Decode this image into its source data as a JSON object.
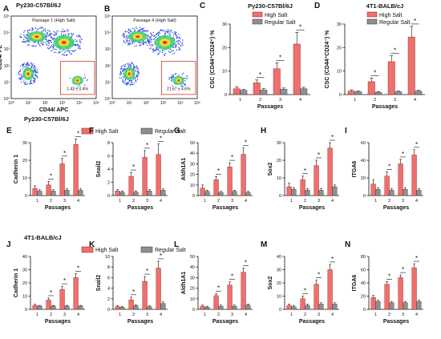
{
  "colors": {
    "high_salt": "#ef6f6c",
    "regular_salt": "#8f8f8f",
    "bar_edge": "#8a1c1c",
    "gray_edge": "#333333"
  },
  "sections": {
    "top_py230": "Py230-C57Bl/6J",
    "top_4t1": "4T1-BALB/cJ",
    "row2_label": "Py230-C57Bl/6J",
    "row3_label": "4T1-BALB/cJ"
  },
  "legend": {
    "high": "High Salt",
    "regular": "Regular Salt"
  },
  "flow": [
    {
      "letter": "A",
      "label": "Passage 1 (High Salt)",
      "ylabel": "CD24/ PE",
      "xlabel": "CD44/ APC",
      "gate_value": "1.43 ± 0.4%",
      "ticks": [
        "10⁰",
        "10¹",
        "10²",
        "10³",
        "10⁴",
        "10⁵"
      ]
    },
    {
      "letter": "B",
      "label": "Passage 4 (High Salt)",
      "ylabel": "",
      "xlabel": "",
      "gate_value": "21.67 ± 4.6%",
      "ticks": [
        "10⁰",
        "10¹",
        "10²",
        "10³",
        "10⁴",
        "10⁵"
      ]
    }
  ],
  "chart_data": [
    {
      "letter": "C",
      "type": "bar",
      "title": "Py230-C57Bl/6J",
      "ylabel": "CSC (CD44⁺CD24⁺) %",
      "xlabel": "Passages",
      "categories": [
        "1",
        "2",
        "3",
        "4"
      ],
      "ylim": [
        0,
        30
      ],
      "yticks": [
        0,
        10,
        20,
        30
      ],
      "series": [
        {
          "name": "High Salt",
          "values": [
            2.5,
            5.0,
            11.0,
            21.5
          ],
          "errors": [
            0.8,
            1.2,
            2.5,
            5.0
          ]
        },
        {
          "name": "Regular Salt",
          "values": [
            1.8,
            2.0,
            2.3,
            2.5
          ],
          "errors": [
            0.4,
            0.5,
            0.5,
            0.6
          ]
        }
      ],
      "significance": [
        false,
        true,
        true,
        true
      ],
      "legend": true
    },
    {
      "letter": "D",
      "type": "bar",
      "title": "4T1-BALB/cJ",
      "ylabel": "CSC (CD44⁺CD24⁻) %",
      "xlabel": "Passages",
      "categories": [
        "1",
        "2",
        "3",
        "4"
      ],
      "ylim": [
        0,
        30
      ],
      "yticks": [
        0,
        10,
        20,
        30
      ],
      "series": [
        {
          "name": "High Salt",
          "values": [
            1.5,
            5.5,
            14.0,
            24.5
          ],
          "errors": [
            0.5,
            1.5,
            2.5,
            4.5
          ]
        },
        {
          "name": "Regular Salt",
          "values": [
            1.2,
            1.0,
            1.2,
            1.5
          ],
          "errors": [
            0.3,
            0.3,
            0.3,
            0.3
          ]
        }
      ],
      "significance": [
        false,
        true,
        true,
        true
      ],
      "legend": true
    },
    {
      "letter": "E",
      "type": "bar",
      "ylabel": "Cadherin 1",
      "xlabel": "Passages",
      "categories": [
        "1",
        "2",
        "3",
        "4"
      ],
      "ylim": [
        0,
        30
      ],
      "yticks": [
        0,
        10,
        20,
        30
      ],
      "series": [
        {
          "name": "High Salt",
          "values": [
            4,
            6,
            18,
            29
          ],
          "errors": [
            1.5,
            2,
            3,
            3
          ]
        },
        {
          "name": "Regular Salt",
          "values": [
            2.5,
            2.5,
            3,
            3
          ],
          "errors": [
            0.8,
            0.8,
            0.8,
            0.8
          ]
        }
      ],
      "significance": [
        false,
        true,
        true,
        true
      ],
      "legend": false
    },
    {
      "letter": "F",
      "type": "bar",
      "ylabel": "Snail2",
      "xlabel": "Passages",
      "categories": [
        "1",
        "2",
        "3",
        "4"
      ],
      "ylim": [
        0,
        8
      ],
      "yticks": [
        0,
        2,
        4,
        6,
        8
      ],
      "series": [
        {
          "name": "High Salt",
          "values": [
            0.7,
            2.9,
            5.8,
            6.2
          ],
          "errors": [
            0.2,
            0.6,
            1.0,
            1.6
          ]
        },
        {
          "name": "Regular Salt",
          "values": [
            0.5,
            0.5,
            0.7,
            0.8
          ],
          "errors": [
            0.2,
            0.2,
            0.2,
            0.2
          ]
        }
      ],
      "significance": [
        false,
        true,
        true,
        true
      ],
      "legend": false
    },
    {
      "letter": "G",
      "type": "bar",
      "ylabel": "Aldh1A1",
      "xlabel": "Passages",
      "categories": [
        "1",
        "2",
        "3",
        "4"
      ],
      "ylim": [
        0,
        50
      ],
      "yticks": [
        0,
        10,
        20,
        30,
        40,
        50
      ],
      "series": [
        {
          "name": "High Salt",
          "values": [
            7,
            15,
            27,
            39
          ],
          "errors": [
            3,
            3,
            4,
            6
          ]
        },
        {
          "name": "Regular Salt",
          "values": [
            4,
            3,
            4,
            3
          ],
          "errors": [
            1,
            1,
            1,
            1
          ]
        }
      ],
      "significance": [
        false,
        true,
        true,
        true
      ],
      "legend": false
    },
    {
      "letter": "H",
      "type": "bar",
      "ylabel": "Sox2",
      "xlabel": "Passages",
      "categories": [
        "1",
        "2",
        "3",
        "4"
      ],
      "ylim": [
        0,
        30
      ],
      "yticks": [
        0,
        10,
        20,
        30
      ],
      "series": [
        {
          "name": "High Salt",
          "values": [
            5,
            9,
            17,
            27
          ],
          "errors": [
            2,
            2,
            3,
            3
          ]
        },
        {
          "name": "Regular Salt",
          "values": [
            3.5,
            3,
            3,
            5
          ],
          "errors": [
            1,
            1,
            1,
            1
          ]
        }
      ],
      "significance": [
        false,
        true,
        true,
        true
      ],
      "legend": false
    },
    {
      "letter": "I",
      "type": "bar",
      "ylabel": "ITGA6",
      "xlabel": "Passages",
      "categories": [
        "1",
        "2",
        "3",
        "4"
      ],
      "ylim": [
        0,
        60
      ],
      "yticks": [
        0,
        20,
        40,
        60
      ],
      "series": [
        {
          "name": "High Salt",
          "values": [
            13,
            22,
            36,
            46
          ],
          "errors": [
            5,
            5,
            5,
            6
          ]
        },
        {
          "name": "Regular Salt",
          "values": [
            7,
            6,
            7,
            6
          ],
          "errors": [
            2,
            2,
            2,
            2
          ]
        }
      ],
      "significance": [
        false,
        true,
        true,
        true
      ],
      "legend": false
    },
    {
      "letter": "J",
      "type": "bar",
      "ylabel": "Cadherin 1",
      "xlabel": "Passages",
      "categories": [
        "1",
        "2",
        "3",
        "4"
      ],
      "ylim": [
        0,
        40
      ],
      "yticks": [
        0,
        10,
        20,
        30,
        40
      ],
      "series": [
        {
          "name": "High Salt",
          "values": [
            3,
            7,
            15,
            24
          ],
          "errors": [
            0.8,
            1.5,
            2.5,
            3
          ]
        },
        {
          "name": "Regular Salt",
          "values": [
            2.5,
            2.5,
            2.5,
            2.5
          ],
          "errors": [
            0.5,
            0.5,
            0.5,
            0.5
          ]
        }
      ],
      "significance": [
        false,
        true,
        true,
        true
      ],
      "legend": false
    },
    {
      "letter": "K",
      "type": "bar",
      "ylabel": "Snail2",
      "xlabel": "Passages",
      "categories": [
        "1",
        "2",
        "3",
        "4"
      ],
      "ylim": [
        0,
        10
      ],
      "yticks": [
        0,
        2,
        4,
        6,
        8,
        10
      ],
      "series": [
        {
          "name": "High Salt",
          "values": [
            0.5,
            1.8,
            5.3,
            7.8
          ],
          "errors": [
            0.2,
            0.5,
            0.9,
            1.3
          ]
        },
        {
          "name": "Regular Salt",
          "values": [
            0.4,
            0.7,
            0.5,
            1.1
          ],
          "errors": [
            0.1,
            0.2,
            0.2,
            0.3
          ]
        }
      ],
      "significance": [
        false,
        true,
        true,
        true
      ],
      "legend": false
    },
    {
      "letter": "L",
      "type": "bar",
      "ylabel": "Aldh1A1",
      "xlabel": "Passages",
      "categories": [
        "1",
        "2",
        "3",
        "4"
      ],
      "ylim": [
        0,
        50
      ],
      "yticks": [
        0,
        10,
        20,
        30,
        40,
        50
      ],
      "series": [
        {
          "name": "High Salt",
          "values": [
            3,
            13,
            23,
            35
          ],
          "errors": [
            1,
            2,
            3,
            4
          ]
        },
        {
          "name": "Regular Salt",
          "values": [
            2,
            3,
            3,
            4
          ],
          "errors": [
            1,
            1,
            1,
            1
          ]
        }
      ],
      "significance": [
        false,
        true,
        true,
        true
      ],
      "legend": false
    },
    {
      "letter": "M",
      "type": "bar",
      "ylabel": "Sox2",
      "xlabel": "Passages",
      "categories": [
        "1",
        "2",
        "3",
        "4"
      ],
      "ylim": [
        0,
        40
      ],
      "yticks": [
        0,
        10,
        20,
        30,
        40
      ],
      "series": [
        {
          "name": "High Salt",
          "values": [
            3,
            8,
            19,
            30
          ],
          "errors": [
            1,
            2,
            3,
            4
          ]
        },
        {
          "name": "Regular Salt",
          "values": [
            2,
            3,
            4,
            4
          ],
          "errors": [
            1,
            1,
            1,
            1
          ]
        }
      ],
      "significance": [
        false,
        true,
        true,
        true
      ],
      "legend": false
    },
    {
      "letter": "N",
      "type": "bar",
      "ylabel": "ITGA6",
      "xlabel": "Passages",
      "categories": [
        "1",
        "2",
        "3",
        "4"
      ],
      "ylim": [
        0,
        80
      ],
      "yticks": [
        0,
        20,
        40,
        60,
        80
      ],
      "series": [
        {
          "name": "High Salt",
          "values": [
            18,
            38,
            48,
            63
          ],
          "errors": [
            3,
            4,
            4,
            6
          ]
        },
        {
          "name": "Regular Salt",
          "values": [
            12,
            10,
            10,
            12
          ],
          "errors": [
            2,
            2,
            2,
            2
          ]
        }
      ],
      "significance": [
        false,
        true,
        true,
        true
      ],
      "legend": false
    }
  ]
}
